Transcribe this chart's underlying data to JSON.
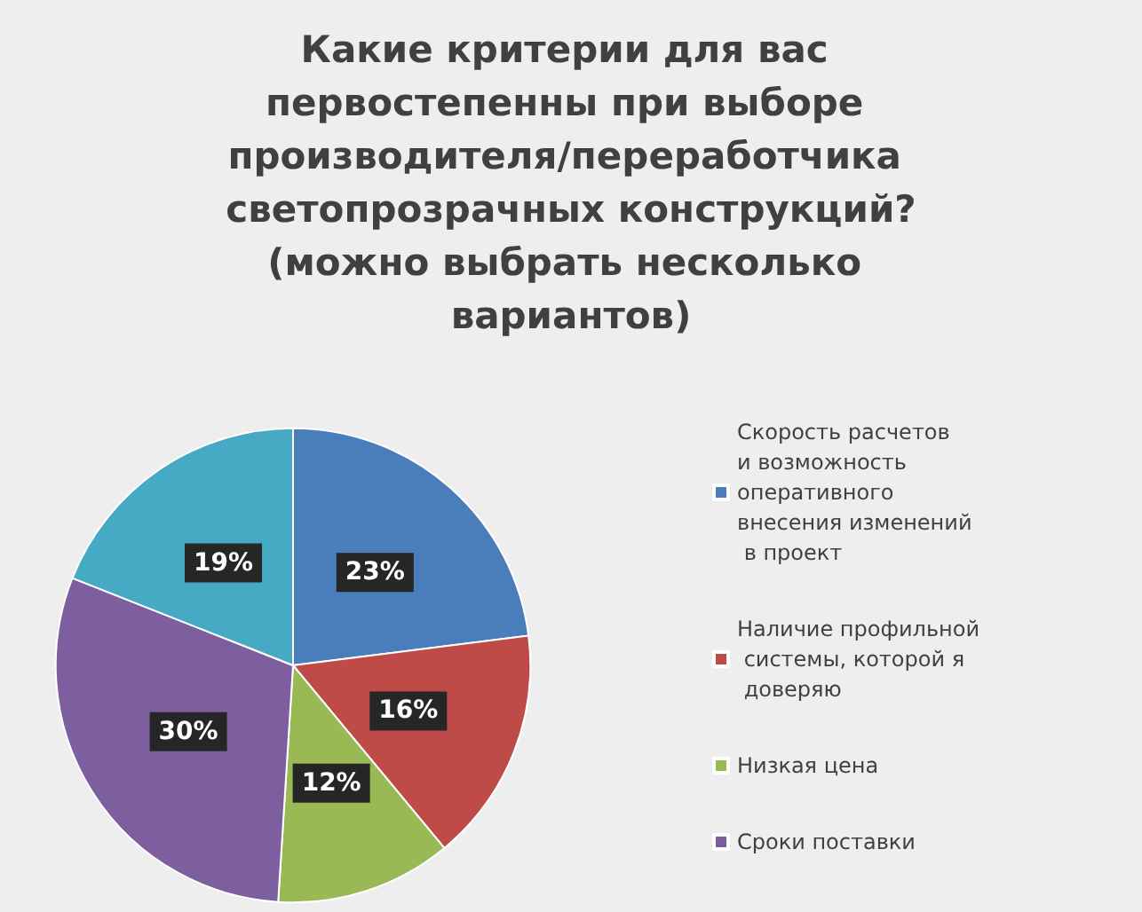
{
  "chart_data": {
    "type": "pie",
    "title": "Какие критерии для вас первостепенны при выборе производителя/переработчика светопрозрачных конструкций?(можно выбрать несколько вариантов)",
    "categories": [
      "Скорость расчетов и возможность оперативного внесения изменений в проект",
      "Наличие профильной системы, которой я доверяю",
      "Низкая цена",
      "Сроки поставки",
      null
    ],
    "values": [
      23,
      16,
      12,
      30,
      19
    ],
    "colors": [
      "#4a7ebb",
      "#be4b48",
      "#98b954",
      "#7d5fa0",
      "#46aac5"
    ],
    "value_labels": [
      "23%",
      "16%",
      "12%",
      "30%",
      "19%"
    ],
    "legend": "right"
  }
}
